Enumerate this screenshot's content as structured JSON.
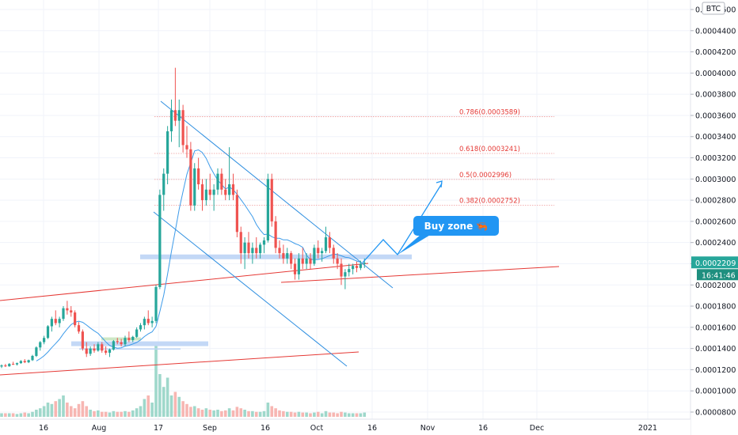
{
  "chart_data": {
    "type": "candlestick",
    "symbol_badge": "BTC",
    "price_axis": {
      "ticks": [
        "0.0004600",
        "0.0004400",
        "0.0004200",
        "0.0004000",
        "0.0003800",
        "0.0003600",
        "0.0003400",
        "0.0003200",
        "0.0003000",
        "0.0002800",
        "0.0002600",
        "0.0002400",
        "0.0002200",
        "0.0002000",
        "0.0001800",
        "0.0001600",
        "0.0001400",
        "0.0001200",
        "0.0001000",
        "0.0000800"
      ],
      "current_price": "0.0002209",
      "countdown": "16:41:46"
    },
    "time_axis": {
      "ticks": [
        "16",
        "Aug",
        "17",
        "Sep",
        "16",
        "Oct",
        "16",
        "Nov",
        "16",
        "Dec",
        "2021"
      ]
    },
    "fib_levels": [
      {
        "label": "0.786(0.0003589)",
        "price": 0.0003589
      },
      {
        "label": "0.618(0.0003241)",
        "price": 0.0003241
      },
      {
        "label": "0.5(0.0002996)",
        "price": 0.0002996
      },
      {
        "label": "0.382(0.0002752)",
        "price": 0.0002752
      }
    ],
    "callout": {
      "label": "Buy zone 🦐"
    },
    "candles": [
      [
        0.000123,
        0.000125,
        0.0001215,
        0.000124
      ],
      [
        0.000124,
        0.0001255,
        0.0001225,
        0.0001232
      ],
      [
        0.0001232,
        0.0001262,
        0.0001228,
        0.0001255
      ],
      [
        0.0001255,
        0.0001275,
        0.0001245,
        0.000125
      ],
      [
        0.000125,
        0.0001268,
        0.000124,
        0.0001262
      ],
      [
        0.0001262,
        0.000129,
        0.0001255,
        0.0001282
      ],
      [
        0.0001282,
        0.00013,
        0.0001262,
        0.000127
      ],
      [
        0.000127,
        0.0001295,
        0.0001262,
        0.000129
      ],
      [
        0.000129,
        0.000134,
        0.0001282,
        0.000133
      ],
      [
        0.000133,
        0.000142,
        0.000132,
        0.000141
      ],
      [
        0.000141,
        0.000147,
        0.000138,
        0.000146
      ],
      [
        0.000146,
        0.000152,
        0.000144,
        0.00015
      ],
      [
        0.00015,
        0.000162,
        0.000149,
        0.000161
      ],
      [
        0.000161,
        0.00017,
        0.000156,
        0.000168
      ],
      [
        0.000168,
        0.000176,
        0.000162,
        0.000164
      ],
      [
        0.000164,
        0.00017,
        0.00016,
        0.000168
      ],
      [
        0.000168,
        0.00018,
        0.000166,
        0.000178
      ],
      [
        0.000178,
        0.000185,
        0.000172,
        0.000176
      ],
      [
        0.000176,
        0.00018,
        0.00017,
        0.000174
      ],
      [
        0.000174,
        0.000176,
        0.00016,
        0.000162
      ],
      [
        0.000162,
        0.000165,
        0.000154,
        0.000156
      ],
      [
        0.000156,
        0.000158,
        0.000138,
        0.00014
      ],
      [
        0.00014,
        0.000146,
        0.000132,
        0.000135
      ],
      [
        0.000135,
        0.000142,
        0.000133,
        0.00014
      ],
      [
        0.00014,
        0.000144,
        0.000136,
        0.000138
      ],
      [
        0.000138,
        0.000146,
        0.000137,
        0.000144
      ],
      [
        0.000144,
        0.000146,
        0.000136,
        0.000138
      ],
      [
        0.000138,
        0.000142,
        0.000134,
        0.000136
      ],
      [
        0.000136,
        0.00014,
        0.000132,
        0.000139
      ],
      [
        0.000139,
        0.000148,
        0.000138,
        0.000147
      ],
      [
        0.000147,
        0.00015,
        0.000144,
        0.000146
      ],
      [
        0.000146,
        0.000149,
        0.000142,
        0.000144
      ],
      [
        0.000144,
        0.000152,
        0.000142,
        0.00015
      ],
      [
        0.00015,
        0.000156,
        0.000146,
        0.000148
      ],
      [
        0.000148,
        0.000152,
        0.000146,
        0.000151
      ],
      [
        0.000151,
        0.00016,
        0.00015,
        0.000158
      ],
      [
        0.000158,
        0.000164,
        0.000156,
        0.000162
      ],
      [
        0.000162,
        0.00017,
        0.000158,
        0.000168
      ],
      [
        0.000168,
        0.000176,
        0.000162,
        0.000164
      ],
      [
        0.000164,
        0.00017,
        0.00016,
        0.000166
      ],
      [
        0.000166,
        0.0002,
        0.000164,
        0.000198
      ],
      [
        0.000198,
        0.00029,
        0.000196,
        0.000285
      ],
      [
        0.000285,
        0.00031,
        0.00027,
        0.000305
      ],
      [
        0.000305,
        0.00035,
        0.000295,
        0.000345
      ],
      [
        0.000345,
        0.000375,
        0.000335,
        0.000365
      ],
      [
        0.000365,
        0.000405,
        0.00035,
        0.000355
      ],
      [
        0.000355,
        0.000375,
        0.00033,
        0.000365
      ],
      [
        0.000365,
        0.00037,
        0.000325,
        0.000332
      ],
      [
        0.000332,
        0.00035,
        0.00032,
        0.000328
      ],
      [
        0.000328,
        0.000335,
        0.00027,
        0.000275
      ],
      [
        0.000275,
        0.000315,
        0.00027,
        0.00031
      ],
      [
        0.00031,
        0.00032,
        0.00029,
        0.000295
      ],
      [
        0.000295,
        0.0003,
        0.00027,
        0.00028
      ],
      [
        0.00028,
        0.0003,
        0.000275,
        0.00029
      ],
      [
        0.00029,
        0.000305,
        0.00028,
        0.000285
      ],
      [
        0.000285,
        0.000295,
        0.00027,
        0.00029
      ],
      [
        0.00029,
        0.00031,
        0.000285,
        0.000305
      ],
      [
        0.000305,
        0.00031,
        0.000285,
        0.00029
      ],
      [
        0.00029,
        0.0003,
        0.00028,
        0.000285
      ],
      [
        0.000285,
        0.00033,
        0.00028,
        0.000295
      ],
      [
        0.000295,
        0.000305,
        0.00028,
        0.000285
      ],
      [
        0.000285,
        0.00029,
        0.000245,
        0.00025
      ],
      [
        0.00025,
        0.000255,
        0.00022,
        0.00023
      ],
      [
        0.00023,
        0.000245,
        0.000215,
        0.00024
      ],
      [
        0.00024,
        0.00025,
        0.000225,
        0.00023
      ],
      [
        0.00023,
        0.00024,
        0.00022,
        0.000235
      ],
      [
        0.000235,
        0.000245,
        0.000225,
        0.00023
      ],
      [
        0.00023,
        0.00024,
        0.000225,
        0.000238
      ],
      [
        0.000238,
        0.000245,
        0.00023,
        0.000242
      ],
      [
        0.000242,
        0.000305,
        0.00024,
        0.0003
      ],
      [
        0.0003,
        0.000305,
        0.000255,
        0.00026
      ],
      [
        0.00026,
        0.000265,
        0.00023,
        0.000235
      ],
      [
        0.000235,
        0.000242,
        0.000225,
        0.00023
      ],
      [
        0.00023,
        0.000238,
        0.00022,
        0.000225
      ],
      [
        0.000225,
        0.000235,
        0.00022,
        0.00023
      ],
      [
        0.00023,
        0.000232,
        0.000215,
        0.00022
      ],
      [
        0.00022,
        0.000225,
        0.000205,
        0.00021
      ],
      [
        0.00021,
        0.00023,
        0.000205,
        0.000225
      ],
      [
        0.000225,
        0.000235,
        0.000215,
        0.00022
      ],
      [
        0.00022,
        0.00023,
        0.000215,
        0.000225
      ],
      [
        0.000225,
        0.00023,
        0.000215,
        0.00022
      ],
      [
        0.00022,
        0.000238,
        0.000218,
        0.000235
      ],
      [
        0.000235,
        0.000242,
        0.000225,
        0.00023
      ],
      [
        0.00023,
        0.000235,
        0.000222,
        0.000232
      ],
      [
        0.000232,
        0.000255,
        0.00023,
        0.000245
      ],
      [
        0.000245,
        0.00025,
        0.00023,
        0.000235
      ],
      [
        0.000235,
        0.000238,
        0.00022,
        0.000225
      ],
      [
        0.000225,
        0.00023,
        0.000215,
        0.00022
      ],
      [
        0.00022,
        0.000225,
        0.0002,
        0.000208
      ],
      [
        0.000208,
        0.000215,
        0.000196,
        0.000212
      ],
      [
        0.000212,
        0.00022,
        0.000208,
        0.000215
      ],
      [
        0.000215,
        0.00022,
        0.00021,
        0.000218
      ],
      [
        0.000218,
        0.000222,
        0.000212,
        0.000216
      ],
      [
        0.000216,
        0.000223,
        0.000214,
        0.00022
      ],
      [
        0.00022,
        0.000225,
        0.000216,
        0.0002209
      ]
    ],
    "volumes": [
      0.05,
      0.05,
      0.05,
      0.05,
      0.04,
      0.05,
      0.06,
      0.05,
      0.07,
      0.1,
      0.12,
      0.15,
      0.2,
      0.18,
      0.22,
      0.25,
      0.3,
      0.2,
      0.15,
      0.12,
      0.18,
      0.22,
      0.15,
      0.1,
      0.08,
      0.09,
      0.07,
      0.07,
      0.06,
      0.08,
      0.07,
      0.07,
      0.08,
      0.07,
      0.09,
      0.12,
      0.15,
      0.25,
      0.3,
      0.2,
      1.0,
      0.6,
      0.42,
      0.55,
      0.3,
      0.35,
      0.28,
      0.22,
      0.18,
      0.14,
      0.15,
      0.12,
      0.1,
      0.12,
      0.1,
      0.09,
      0.1,
      0.08,
      0.09,
      0.12,
      0.09,
      0.14,
      0.12,
      0.1,
      0.08,
      0.08,
      0.07,
      0.07,
      0.08,
      0.2,
      0.15,
      0.12,
      0.09,
      0.08,
      0.07,
      0.07,
      0.06,
      0.07,
      0.06,
      0.06,
      0.05,
      0.06,
      0.07,
      0.05,
      0.08,
      0.06,
      0.06,
      0.05,
      0.07,
      0.06,
      0.05,
      0.05,
      0.05,
      0.05,
      0.06
    ]
  }
}
